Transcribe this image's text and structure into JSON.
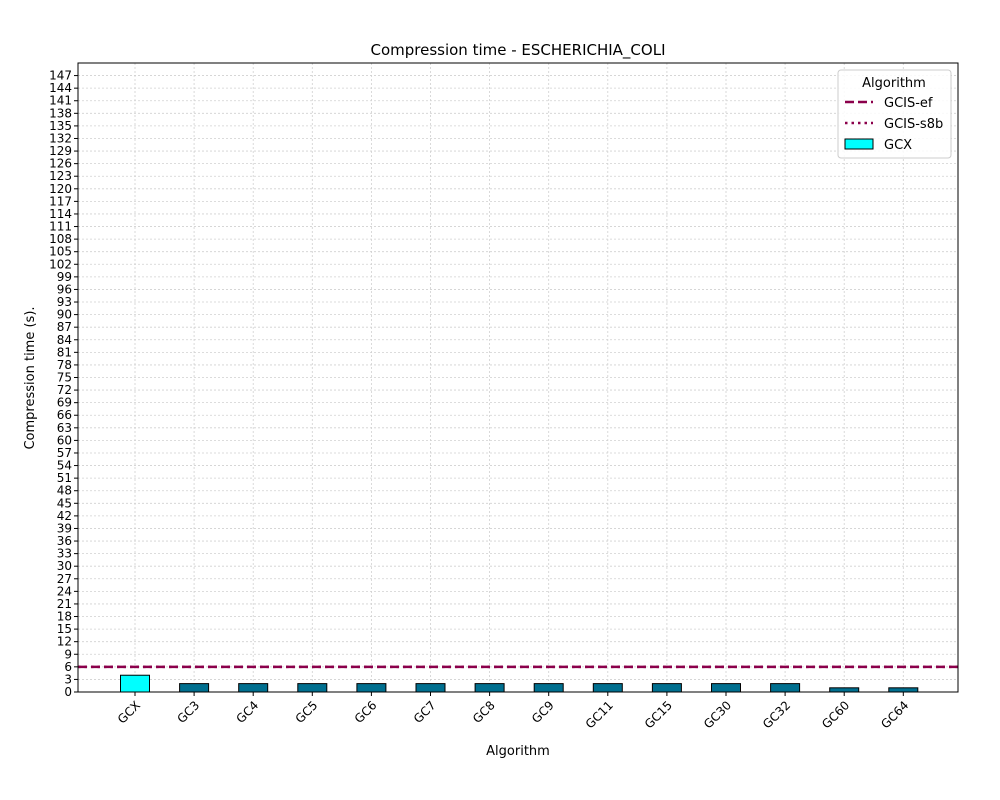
{
  "chart_data": {
    "type": "bar",
    "title": "Compression time -  ESCHERICHIA_COLI",
    "xlabel": "Algorithm",
    "ylabel": "Compression time (s).",
    "ylim": [
      0,
      150
    ],
    "ytick_step": 3,
    "ytick_max": 147,
    "grid": true,
    "legend_position": "top-right",
    "legend_title": "Algorithm",
    "categories": [
      "GCX",
      "GC3",
      "GC4",
      "GC5",
      "GC6",
      "GC7",
      "GC8",
      "GC9",
      "GC11",
      "GC15",
      "GC30",
      "GC32",
      "GC60",
      "GC64"
    ],
    "values": [
      4,
      2,
      2,
      2,
      2,
      2,
      2,
      2,
      2,
      2,
      2,
      2,
      1,
      1
    ],
    "bar_colors": [
      "#00ffff",
      "#006f8f",
      "#006f8f",
      "#006f8f",
      "#006f8f",
      "#006f8f",
      "#006f8f",
      "#006f8f",
      "#006f8f",
      "#006f8f",
      "#006f8f",
      "#006f8f",
      "#006f8f",
      "#006f8f"
    ],
    "bar_series_name": "GCX",
    "reference_lines": [
      {
        "name": "GCIS-ef",
        "value": 6,
        "style": "dashed",
        "color": "#8b004b"
      },
      {
        "name": "GCIS-s8b",
        "value": 6,
        "style": "dotted",
        "color": "#8b004b"
      }
    ]
  }
}
